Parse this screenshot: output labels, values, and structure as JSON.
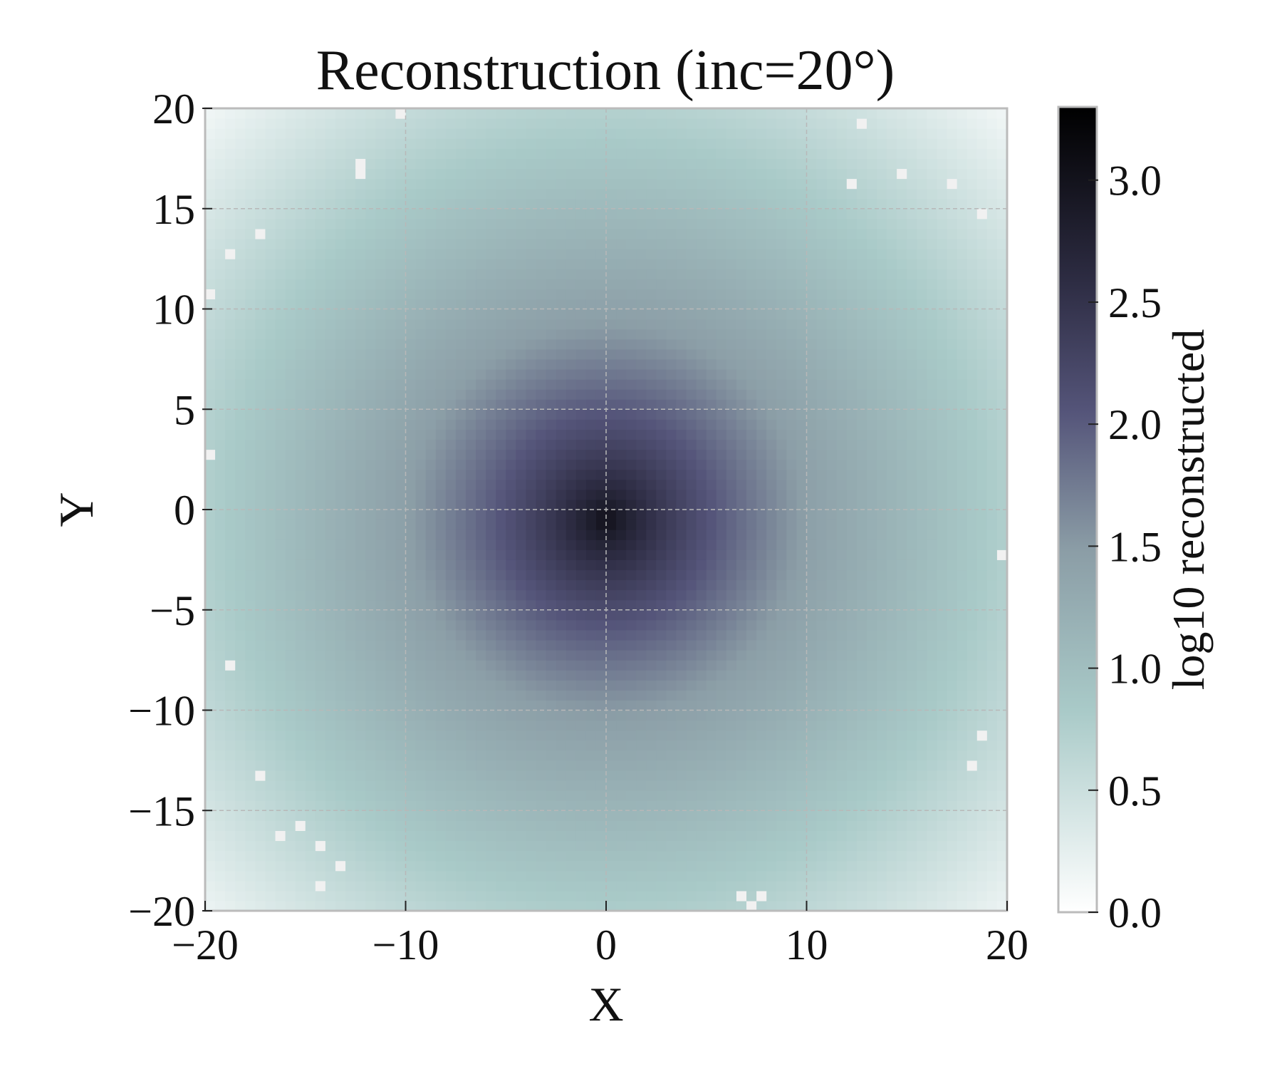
{
  "chart_data": {
    "type": "heatmap",
    "title": "Reconstruction (inc=20°)",
    "xlabel": "X",
    "ylabel": "Y",
    "xlim": [
      -20,
      20
    ],
    "ylim": [
      -20,
      20
    ],
    "x_ticks": [
      -20,
      -10,
      0,
      10,
      20
    ],
    "x_tick_labels": [
      "−20",
      "−10",
      "0",
      "10",
      "20"
    ],
    "y_ticks": [
      -20,
      -15,
      -10,
      -5,
      0,
      5,
      10,
      15,
      20
    ],
    "y_tick_labels": [
      "−20",
      "−15",
      "−10",
      "−5",
      "0",
      "5",
      "10",
      "15",
      "20"
    ],
    "grid": true,
    "grid_x": [
      -10,
      0,
      10
    ],
    "grid_y": [
      -15,
      -10,
      -5,
      0,
      5,
      10,
      15
    ],
    "grid_shape": [
      80,
      80
    ],
    "field": {
      "description_model": "log10 value peaks at center and decreases outward",
      "center": [
        0,
        -0.5
      ],
      "peak_value": 3.1,
      "value_at_r10": 1.45,
      "value_at_r20": 0.75,
      "corner_value": 0.15
    },
    "missing_cells": [
      [
        -12.25,
        17.25
      ],
      [
        -12.25,
        16.75
      ],
      [
        -17.25,
        13.75
      ],
      [
        -18.75,
        12.75
      ],
      [
        -19.75,
        10.75
      ],
      [
        -19.75,
        2.75
      ],
      [
        -18.75,
        -7.75
      ],
      [
        -17.25,
        -13.25
      ],
      [
        -15.25,
        -15.75
      ],
      [
        -16.25,
        -16.25
      ],
      [
        -14.25,
        -16.75
      ],
      [
        -13.25,
        -17.75
      ],
      [
        -14.25,
        -18.75
      ],
      [
        6.75,
        -19.25
      ],
      [
        7.75,
        -19.25
      ],
      [
        7.25,
        -19.75
      ],
      [
        12.75,
        19.25
      ],
      [
        12.25,
        16.25
      ],
      [
        14.75,
        16.75
      ],
      [
        17.25,
        16.25
      ],
      [
        18.75,
        14.75
      ],
      [
        19.75,
        -2.25
      ],
      [
        18.75,
        -11.25
      ],
      [
        18.25,
        -12.75
      ],
      [
        -10.25,
        19.75
      ]
    ],
    "colorbar": {
      "label": "log10 reconstructed",
      "min": 0.0,
      "max": 3.3,
      "ticks": [
        0.0,
        0.5,
        1.0,
        1.5,
        2.0,
        2.5,
        3.0
      ],
      "tick_labels": [
        "0.0",
        "0.5",
        "1.0",
        "1.5",
        "2.0",
        "2.5",
        "3.0"
      ],
      "colormap_stops": [
        [
          0.0,
          "#ffffff"
        ],
        [
          0.25,
          "#a9cac8"
        ],
        [
          0.45,
          "#8b9da6"
        ],
        [
          0.62,
          "#55557a"
        ],
        [
          0.78,
          "#2e2d44"
        ],
        [
          1.0,
          "#000000"
        ]
      ]
    }
  }
}
